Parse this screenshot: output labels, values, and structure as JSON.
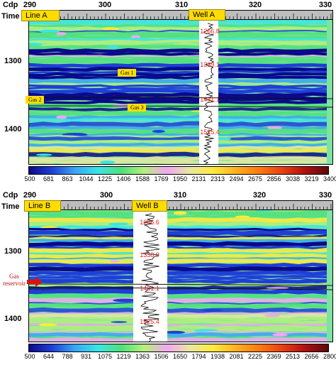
{
  "panels": [
    {
      "id": "a",
      "cdp_axis_label": "Cdp",
      "time_axis_label": "Time",
      "cdp_ticks": [
        "290",
        "300",
        "310",
        "320",
        "330"
      ],
      "time_ticks": [
        "1300",
        "1400"
      ],
      "line_label": "Line A",
      "well_label": "Well A",
      "gas_labels": [
        "Gas 1",
        "Gas 2",
        "Gas 3"
      ],
      "well_depths": [
        "1266.8",
        "1339.1",
        "1431.1",
        "1525.4"
      ],
      "colorbar_values": [
        "500",
        "681",
        "863",
        "1044",
        "1225",
        "1406",
        "1588",
        "1769",
        "1950",
        "2131",
        "2313",
        "2494",
        "2675",
        "2856",
        "3038",
        "3219",
        "3400"
      ]
    },
    {
      "id": "b",
      "cdp_axis_label": "Cdp",
      "time_axis_label": "Time",
      "cdp_ticks": [
        "290",
        "300",
        "310",
        "320",
        "330"
      ],
      "time_ticks": [
        "1300",
        "1400"
      ],
      "line_label": "Line B",
      "well_label": "Well B",
      "annotation": "Gas reservoir",
      "well_depths": [
        "1266.6",
        "1338.9",
        "1431.1",
        "1525.4"
      ],
      "colorbar_values": [
        "500",
        "644",
        "788",
        "931",
        "1075",
        "1219",
        "1363",
        "1506",
        "1650",
        "1794",
        "1938",
        "2081",
        "2225",
        "2369",
        "2513",
        "2656",
        "2800"
      ]
    }
  ],
  "colors": {
    "label_tag": "#ffdd00",
    "depth_text": "#e0201a",
    "arrow": "#dd1111"
  },
  "colorbar_gradient": [
    "#0a0a8a",
    "#1f3fd8",
    "#3aa6f5",
    "#39e6e6",
    "#4fe07a",
    "#b4f07a",
    "#f2a6f2",
    "#e7e7a0",
    "#ffeb3b",
    "#ffb020",
    "#ff7a10",
    "#e84012",
    "#b01010",
    "#5a0a0a"
  ]
}
